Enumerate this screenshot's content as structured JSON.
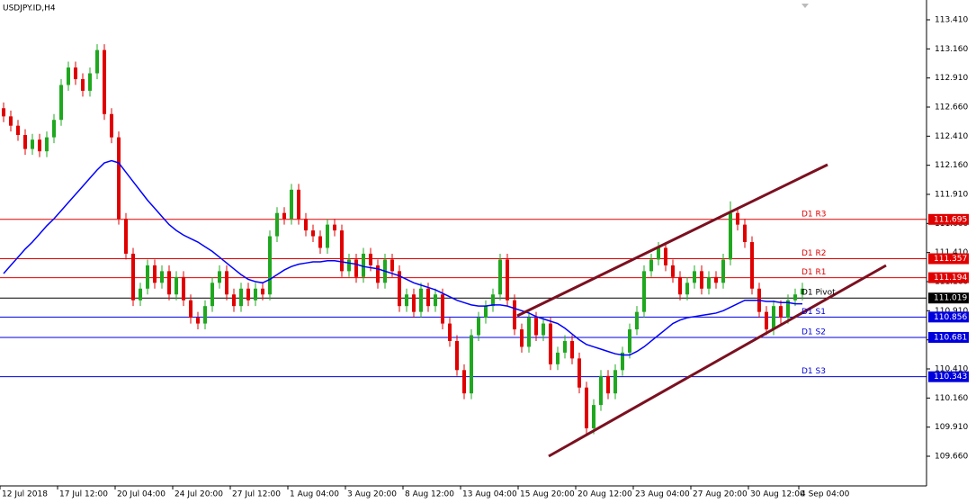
{
  "chart_data": {
    "type": "candlestick",
    "title": "USDJPY.ID,H4",
    "categories": [
      "12 Jul 2018",
      null,
      null,
      null,
      null,
      null,
      null,
      null,
      "17 Jul 12:00",
      null,
      null,
      null,
      null,
      null,
      null,
      null,
      "20 Jul 04:00",
      null,
      null,
      null,
      null,
      null,
      null,
      null,
      "24 Jul 20:00",
      null,
      null,
      null,
      null,
      null,
      null,
      null,
      "27 Jul 12:00",
      null,
      null,
      null,
      null,
      null,
      null,
      null,
      "1 Aug 04:00",
      null,
      null,
      null,
      null,
      null,
      null,
      null,
      "3 Aug 20:00",
      null,
      null,
      null,
      null,
      null,
      null,
      null,
      "8 Aug 12:00",
      null,
      null,
      null,
      null,
      null,
      null,
      null,
      "13 Aug 04:00",
      null,
      null,
      null,
      null,
      null,
      null,
      null,
      "15 Aug 20:00",
      null,
      null,
      null,
      null,
      null,
      null,
      null,
      "20 Aug 12:00",
      null,
      null,
      null,
      null,
      null,
      null,
      null,
      "23 Aug 04:00",
      null,
      null,
      null,
      null,
      null,
      null,
      null,
      "27 Aug 20:00",
      null,
      null,
      null,
      null,
      null,
      null,
      null,
      "30 Aug 12:00",
      null,
      null,
      null,
      null,
      null,
      null,
      "4 Sep 04:00"
    ],
    "open": [
      112.65,
      112.58,
      112.5,
      112.42,
      112.3,
      112.38,
      112.28,
      112.4,
      112.55,
      112.85,
      113.0,
      112.9,
      112.8,
      112.95,
      113.15,
      112.6,
      112.4,
      111.7,
      111.4,
      111.0,
      111.1,
      111.3,
      111.15,
      111.25,
      111.05,
      111.2,
      111.0,
      110.85,
      110.8,
      110.95,
      111.15,
      111.25,
      111.05,
      110.95,
      111.1,
      111.0,
      111.1,
      111.05,
      111.55,
      111.75,
      111.7,
      111.95,
      111.7,
      111.6,
      111.55,
      111.45,
      111.65,
      111.6,
      111.25,
      111.35,
      111.2,
      111.4,
      111.3,
      111.15,
      111.35,
      111.25,
      110.95,
      111.05,
      110.9,
      111.1,
      110.95,
      111.05,
      110.8,
      110.65,
      110.4,
      110.2,
      110.7,
      110.85,
      110.95,
      111.05,
      111.35,
      111.0,
      110.75,
      110.6,
      110.85,
      110.7,
      110.8,
      110.45,
      110.55,
      110.65,
      110.5,
      110.25,
      109.9,
      110.1,
      110.35,
      110.2,
      110.4,
      110.55,
      110.75,
      110.9,
      111.25,
      111.35,
      111.45,
      111.3,
      111.2,
      111.05,
      111.15,
      111.25,
      111.1,
      111.2,
      111.15,
      111.35,
      111.75,
      111.65,
      111.5,
      111.1,
      110.9,
      110.75,
      110.95,
      110.85,
      111.0,
      111.05
    ],
    "high": [
      112.7,
      112.63,
      112.55,
      112.47,
      112.43,
      112.43,
      112.45,
      112.6,
      112.9,
      113.05,
      113.05,
      112.95,
      113.0,
      113.2,
      113.2,
      112.65,
      112.45,
      111.75,
      111.45,
      111.15,
      111.35,
      111.35,
      111.3,
      111.3,
      111.25,
      111.25,
      111.05,
      110.9,
      111.0,
      111.2,
      111.3,
      111.3,
      111.1,
      111.15,
      111.15,
      111.15,
      111.15,
      111.6,
      111.8,
      111.8,
      112.0,
      112.0,
      111.75,
      111.65,
      111.6,
      111.7,
      111.7,
      111.65,
      111.4,
      111.4,
      111.45,
      111.45,
      111.35,
      111.4,
      111.4,
      111.3,
      111.1,
      111.1,
      111.15,
      111.15,
      111.1,
      111.1,
      110.85,
      110.7,
      110.45,
      110.75,
      110.9,
      111.0,
      111.1,
      111.4,
      111.4,
      111.05,
      110.8,
      110.9,
      110.9,
      110.85,
      110.85,
      110.6,
      110.7,
      110.7,
      110.55,
      110.3,
      110.15,
      110.4,
      110.4,
      110.45,
      110.6,
      110.8,
      110.95,
      111.3,
      111.4,
      111.5,
      111.5,
      111.35,
      111.25,
      111.2,
      111.3,
      111.3,
      111.25,
      111.25,
      111.4,
      111.85,
      111.8,
      111.7,
      111.55,
      111.15,
      110.95,
      111.0,
      111.0,
      111.05,
      111.1,
      111.15
    ],
    "low": [
      112.53,
      112.45,
      112.37,
      112.25,
      112.25,
      112.23,
      112.23,
      112.35,
      112.5,
      112.8,
      112.85,
      112.75,
      112.75,
      112.9,
      112.55,
      112.35,
      111.65,
      111.35,
      110.95,
      110.95,
      111.05,
      111.1,
      111.1,
      111.0,
      111.0,
      110.95,
      110.8,
      110.75,
      110.75,
      110.9,
      111.1,
      111.0,
      110.9,
      110.9,
      110.95,
      110.95,
      111.0,
      111.0,
      111.5,
      111.65,
      111.65,
      111.65,
      111.55,
      111.5,
      111.4,
      111.4,
      111.55,
      111.2,
      111.2,
      111.15,
      111.15,
      111.25,
      111.1,
      111.1,
      111.2,
      110.9,
      110.9,
      110.85,
      110.85,
      110.9,
      110.9,
      110.75,
      110.6,
      110.35,
      110.15,
      110.15,
      110.65,
      110.8,
      110.9,
      111.0,
      110.95,
      110.7,
      110.55,
      110.55,
      110.65,
      110.65,
      110.4,
      110.4,
      110.5,
      110.45,
      110.2,
      109.85,
      109.85,
      110.05,
      110.15,
      110.15,
      110.35,
      110.5,
      110.7,
      110.85,
      111.2,
      111.3,
      111.25,
      111.15,
      111.0,
      111.0,
      111.1,
      111.05,
      111.05,
      111.1,
      111.1,
      111.3,
      111.6,
      111.45,
      111.05,
      110.85,
      110.7,
      110.7,
      110.8,
      110.8,
      110.95,
      111.0
    ],
    "close": [
      112.58,
      112.5,
      112.42,
      112.3,
      112.38,
      112.28,
      112.4,
      112.55,
      112.85,
      113.0,
      112.9,
      112.8,
      112.95,
      113.15,
      112.6,
      112.4,
      111.7,
      111.4,
      111.0,
      111.1,
      111.3,
      111.15,
      111.25,
      111.05,
      111.2,
      111.0,
      110.85,
      110.8,
      110.95,
      111.15,
      111.25,
      111.05,
      110.95,
      111.1,
      111.0,
      111.1,
      111.05,
      111.55,
      111.75,
      111.7,
      111.95,
      111.7,
      111.6,
      111.55,
      111.45,
      111.65,
      111.6,
      111.25,
      111.35,
      111.2,
      111.4,
      111.3,
      111.15,
      111.35,
      111.25,
      110.95,
      111.05,
      110.9,
      111.1,
      110.95,
      111.05,
      110.8,
      110.65,
      110.4,
      110.2,
      110.7,
      110.85,
      110.95,
      111.05,
      111.35,
      111.0,
      110.75,
      110.6,
      110.85,
      110.7,
      110.8,
      110.45,
      110.55,
      110.65,
      110.5,
      110.25,
      109.9,
      110.1,
      110.35,
      110.2,
      110.4,
      110.55,
      110.75,
      110.9,
      111.25,
      111.35,
      111.45,
      111.3,
      111.2,
      111.05,
      111.15,
      111.25,
      111.1,
      111.2,
      111.15,
      111.35,
      111.75,
      111.65,
      111.5,
      111.1,
      110.9,
      110.75,
      110.95,
      110.85,
      111.0,
      111.05,
      111.1
    ],
    "up_color": "#1fa81f",
    "down_color": "#e00000",
    "ma": {
      "color": "#0000ff",
      "values": [
        111.23,
        111.3,
        111.37,
        111.44,
        111.5,
        111.57,
        111.64,
        111.7,
        111.77,
        111.84,
        111.91,
        111.98,
        112.05,
        112.12,
        112.18,
        112.2,
        112.18,
        112.1,
        112.02,
        111.94,
        111.86,
        111.79,
        111.72,
        111.65,
        111.6,
        111.56,
        111.53,
        111.5,
        111.46,
        111.42,
        111.37,
        111.32,
        111.27,
        111.22,
        111.18,
        111.16,
        111.15,
        111.18,
        111.22,
        111.26,
        111.29,
        111.31,
        111.32,
        111.33,
        111.33,
        111.34,
        111.34,
        111.33,
        111.32,
        111.31,
        111.29,
        111.28,
        111.27,
        111.25,
        111.23,
        111.21,
        111.18,
        111.15,
        111.13,
        111.11,
        111.09,
        111.06,
        111.03,
        111.0,
        110.98,
        110.96,
        110.95,
        110.95,
        110.96,
        110.96,
        110.95,
        110.93,
        110.91,
        110.89,
        110.86,
        110.84,
        110.82,
        110.8,
        110.76,
        110.71,
        110.66,
        110.62,
        110.6,
        110.58,
        110.56,
        110.54,
        110.53,
        110.53,
        110.56,
        110.6,
        110.65,
        110.7,
        110.75,
        110.8,
        110.83,
        110.85,
        110.86,
        110.87,
        110.88,
        110.89,
        110.91,
        110.94,
        110.97,
        111.0,
        111.0,
        111.0,
        110.99,
        110.99,
        110.98,
        110.98,
        110.97,
        110.97
      ]
    },
    "levels": [
      {
        "name": "D1 R3",
        "value": 111.695,
        "color": "#e00000"
      },
      {
        "name": "D1 R2",
        "value": 111.357,
        "color": "#e00000"
      },
      {
        "name": "D1 R1",
        "value": 111.194,
        "color": "#e00000"
      },
      {
        "name": "D1 Pivot",
        "value": 111.019,
        "color": "#000000"
      },
      {
        "name": "D1 S1",
        "value": 110.856,
        "color": "#0000dd"
      },
      {
        "name": "D1 S2",
        "value": 110.681,
        "color": "#0000dd"
      },
      {
        "name": "D1 S3",
        "value": 110.343,
        "color": "#0000dd"
      }
    ],
    "ylim": [
      109.405,
      113.58
    ],
    "yticks": [
      {
        "value": 113.41,
        "label": "113.410"
      },
      {
        "value": 113.16,
        "label": "113.160"
      },
      {
        "value": 112.91,
        "label": "112.910"
      },
      {
        "value": 112.66,
        "label": "112.660"
      },
      {
        "value": 112.41,
        "label": "112.410"
      },
      {
        "value": 112.16,
        "label": "112.160"
      },
      {
        "value": 111.91,
        "label": "111.910"
      },
      {
        "value": 111.66,
        "label": "111.660"
      },
      {
        "value": 111.41,
        "label": "111.410"
      },
      {
        "value": 111.16,
        "label": "111.160"
      },
      {
        "value": 110.91,
        "label": "110.910"
      },
      {
        "value": 110.66,
        "label": "110.660"
      },
      {
        "value": 110.41,
        "label": "110.410"
      },
      {
        "value": 110.16,
        "label": "110.160"
      },
      {
        "value": 109.91,
        "label": "109.910"
      },
      {
        "value": 109.66,
        "label": "109.660"
      }
    ]
  }
}
